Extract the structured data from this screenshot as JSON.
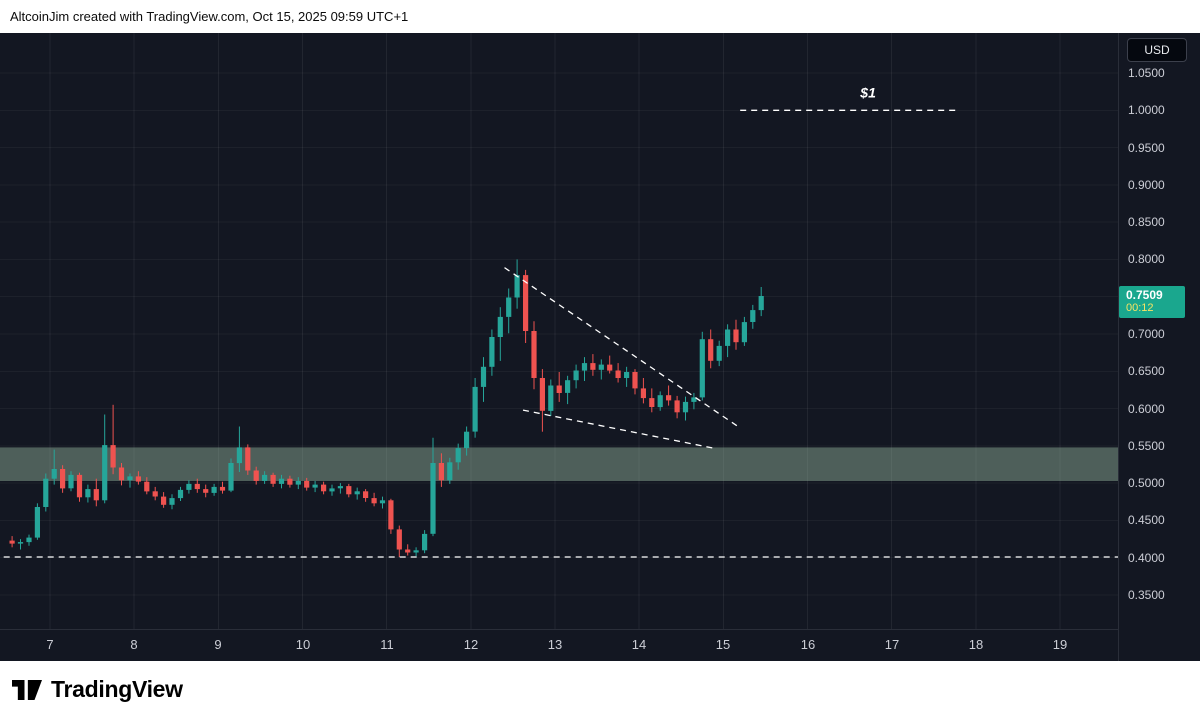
{
  "topbar": {
    "attribution": "AltcoinJim created with TradingView.com, Oct 15, 2025 09:59 UTC+1"
  },
  "price_axis": {
    "currency_label": "USD",
    "ticks": [
      "1.0500",
      "1.0000",
      "0.9500",
      "0.9000",
      "0.8500",
      "0.8000",
      "0.7500",
      "0.7000",
      "0.6500",
      "0.6000",
      "0.5500",
      "0.5000",
      "0.4500",
      "0.4000",
      "0.3500"
    ],
    "tick_values": [
      1.05,
      1.0,
      0.95,
      0.9,
      0.85,
      0.8,
      0.75,
      0.7,
      0.65,
      0.6,
      0.55,
      0.5,
      0.45,
      0.4,
      0.35
    ],
    "price_badge": {
      "price": "0.7509",
      "countdown": "00:12",
      "value": 0.7509,
      "bg_color": "#1aa78e",
      "price_color": "#ffffff",
      "countdown_color": "#f7e463"
    }
  },
  "time_axis": {
    "ticks": [
      7,
      8,
      9,
      10,
      11,
      12,
      13,
      14,
      15,
      16,
      17,
      18,
      19
    ]
  },
  "footer": {
    "brand": "TradingView"
  },
  "chart_data": {
    "type": "candlestick",
    "quote_currency": "USD",
    "x_unit": "day of month (October)",
    "x_range": [
      6.45,
      19.7
    ],
    "y_range": [
      0.31,
      1.1
    ],
    "grid": true,
    "up_color": "#26a69a",
    "down_color": "#ef5350",
    "last_price": 0.7509,
    "candles_format": [
      "day",
      "open",
      "high",
      "low",
      "close"
    ],
    "candles": [
      [
        6.55,
        0.423,
        0.429,
        0.414,
        0.419
      ],
      [
        6.65,
        0.419,
        0.425,
        0.411,
        0.421
      ],
      [
        6.75,
        0.421,
        0.431,
        0.416,
        0.427
      ],
      [
        6.85,
        0.427,
        0.473,
        0.424,
        0.468
      ],
      [
        6.95,
        0.468,
        0.513,
        0.462,
        0.506
      ],
      [
        7.05,
        0.506,
        0.545,
        0.498,
        0.519
      ],
      [
        7.15,
        0.519,
        0.524,
        0.487,
        0.493
      ],
      [
        7.25,
        0.493,
        0.516,
        0.489,
        0.511
      ],
      [
        7.35,
        0.511,
        0.514,
        0.475,
        0.481
      ],
      [
        7.45,
        0.481,
        0.498,
        0.474,
        0.492
      ],
      [
        7.55,
        0.492,
        0.506,
        0.469,
        0.477
      ],
      [
        7.65,
        0.477,
        0.592,
        0.473,
        0.551
      ],
      [
        7.75,
        0.551,
        0.605,
        0.512,
        0.521
      ],
      [
        7.85,
        0.521,
        0.527,
        0.497,
        0.504
      ],
      [
        7.95,
        0.504,
        0.513,
        0.494,
        0.509
      ],
      [
        8.05,
        0.509,
        0.516,
        0.498,
        0.502
      ],
      [
        8.15,
        0.502,
        0.508,
        0.485,
        0.489
      ],
      [
        8.25,
        0.489,
        0.495,
        0.477,
        0.482
      ],
      [
        8.35,
        0.482,
        0.488,
        0.467,
        0.471
      ],
      [
        8.45,
        0.471,
        0.485,
        0.465,
        0.48
      ],
      [
        8.55,
        0.48,
        0.495,
        0.476,
        0.491
      ],
      [
        8.65,
        0.491,
        0.504,
        0.486,
        0.499
      ],
      [
        8.75,
        0.499,
        0.506,
        0.487,
        0.492
      ],
      [
        8.85,
        0.492,
        0.498,
        0.481,
        0.487
      ],
      [
        8.95,
        0.487,
        0.499,
        0.483,
        0.495
      ],
      [
        9.05,
        0.495,
        0.502,
        0.486,
        0.49
      ],
      [
        9.15,
        0.49,
        0.533,
        0.488,
        0.527
      ],
      [
        9.25,
        0.527,
        0.576,
        0.515,
        0.548
      ],
      [
        9.35,
        0.548,
        0.552,
        0.511,
        0.517
      ],
      [
        9.45,
        0.517,
        0.522,
        0.498,
        0.503
      ],
      [
        9.55,
        0.503,
        0.516,
        0.499,
        0.511
      ],
      [
        9.65,
        0.511,
        0.514,
        0.495,
        0.499
      ],
      [
        9.75,
        0.499,
        0.511,
        0.493,
        0.506
      ],
      [
        9.85,
        0.506,
        0.51,
        0.494,
        0.498
      ],
      [
        9.95,
        0.498,
        0.508,
        0.492,
        0.503
      ],
      [
        10.05,
        0.503,
        0.507,
        0.49,
        0.494
      ],
      [
        10.15,
        0.494,
        0.503,
        0.488,
        0.498
      ],
      [
        10.25,
        0.498,
        0.502,
        0.485,
        0.489
      ],
      [
        10.35,
        0.489,
        0.498,
        0.483,
        0.493
      ],
      [
        10.45,
        0.493,
        0.5,
        0.486,
        0.496
      ],
      [
        10.55,
        0.496,
        0.499,
        0.481,
        0.485
      ],
      [
        10.65,
        0.485,
        0.494,
        0.478,
        0.489
      ],
      [
        10.75,
        0.489,
        0.492,
        0.475,
        0.48
      ],
      [
        10.85,
        0.48,
        0.487,
        0.469,
        0.473
      ],
      [
        10.95,
        0.473,
        0.482,
        0.466,
        0.477
      ],
      [
        11.05,
        0.477,
        0.479,
        0.432,
        0.438
      ],
      [
        11.15,
        0.438,
        0.443,
        0.401,
        0.411
      ],
      [
        11.25,
        0.411,
        0.418,
        0.403,
        0.407
      ],
      [
        11.35,
        0.407,
        0.414,
        0.402,
        0.41
      ],
      [
        11.45,
        0.41,
        0.437,
        0.406,
        0.432
      ],
      [
        11.55,
        0.432,
        0.561,
        0.429,
        0.527
      ],
      [
        11.65,
        0.527,
        0.54,
        0.495,
        0.504
      ],
      [
        11.75,
        0.504,
        0.534,
        0.499,
        0.528
      ],
      [
        11.85,
        0.528,
        0.553,
        0.518,
        0.547
      ],
      [
        11.95,
        0.547,
        0.576,
        0.537,
        0.569
      ],
      [
        12.05,
        0.569,
        0.641,
        0.561,
        0.629
      ],
      [
        12.15,
        0.629,
        0.669,
        0.609,
        0.656
      ],
      [
        12.25,
        0.656,
        0.706,
        0.644,
        0.696
      ],
      [
        12.35,
        0.696,
        0.736,
        0.664,
        0.723
      ],
      [
        12.45,
        0.723,
        0.761,
        0.701,
        0.749
      ],
      [
        12.55,
        0.749,
        0.8,
        0.734,
        0.779
      ],
      [
        12.65,
        0.779,
        0.786,
        0.688,
        0.704
      ],
      [
        12.75,
        0.704,
        0.717,
        0.626,
        0.641
      ],
      [
        12.85,
        0.641,
        0.653,
        0.569,
        0.597
      ],
      [
        12.95,
        0.597,
        0.639,
        0.59,
        0.631
      ],
      [
        13.05,
        0.631,
        0.649,
        0.609,
        0.621
      ],
      [
        13.15,
        0.621,
        0.644,
        0.606,
        0.638
      ],
      [
        13.25,
        0.638,
        0.659,
        0.627,
        0.651
      ],
      [
        13.35,
        0.651,
        0.669,
        0.637,
        0.661
      ],
      [
        13.45,
        0.661,
        0.673,
        0.644,
        0.652
      ],
      [
        13.55,
        0.652,
        0.666,
        0.639,
        0.659
      ],
      [
        13.65,
        0.659,
        0.671,
        0.647,
        0.651
      ],
      [
        13.75,
        0.651,
        0.661,
        0.635,
        0.641
      ],
      [
        13.85,
        0.641,
        0.656,
        0.629,
        0.649
      ],
      [
        13.95,
        0.649,
        0.653,
        0.619,
        0.627
      ],
      [
        14.05,
        0.627,
        0.641,
        0.607,
        0.614
      ],
      [
        14.15,
        0.614,
        0.627,
        0.595,
        0.602
      ],
      [
        14.25,
        0.602,
        0.623,
        0.597,
        0.618
      ],
      [
        14.35,
        0.618,
        0.631,
        0.604,
        0.611
      ],
      [
        14.45,
        0.611,
        0.617,
        0.587,
        0.595
      ],
      [
        14.55,
        0.595,
        0.616,
        0.584,
        0.609
      ],
      [
        14.65,
        0.609,
        0.621,
        0.599,
        0.615
      ],
      [
        14.75,
        0.615,
        0.703,
        0.611,
        0.693
      ],
      [
        14.85,
        0.693,
        0.706,
        0.654,
        0.664
      ],
      [
        14.95,
        0.664,
        0.691,
        0.657,
        0.684
      ],
      [
        15.05,
        0.684,
        0.713,
        0.669,
        0.706
      ],
      [
        15.15,
        0.706,
        0.719,
        0.679,
        0.689
      ],
      [
        15.25,
        0.689,
        0.723,
        0.684,
        0.716
      ],
      [
        15.35,
        0.716,
        0.739,
        0.707,
        0.732
      ],
      [
        15.45,
        0.732,
        0.763,
        0.724,
        0.7509
      ]
    ],
    "overlays": {
      "support_zone": {
        "from": 0.503,
        "to": 0.548,
        "color": "rgba(150,185,160,0.45)"
      },
      "hlines": [
        {
          "price": 0.401,
          "x_from": 6.45,
          "x_to": 19.7,
          "style": "dashed",
          "color": "#ffffff",
          "label": ""
        },
        {
          "price": 1.0,
          "x_from": 15.2,
          "x_to": 17.78,
          "style": "dashed",
          "color": "#ffffff",
          "label": "$1",
          "label_x": 16.72
        }
      ],
      "trendlines": [
        {
          "x1": 12.4,
          "y1": 0.789,
          "x2": 15.2,
          "y2": 0.574,
          "style": "dashed",
          "color": "#ffffff"
        },
        {
          "x1": 12.62,
          "y1": 0.598,
          "x2": 14.88,
          "y2": 0.547,
          "style": "dashed",
          "color": "#ffffff"
        }
      ]
    }
  }
}
